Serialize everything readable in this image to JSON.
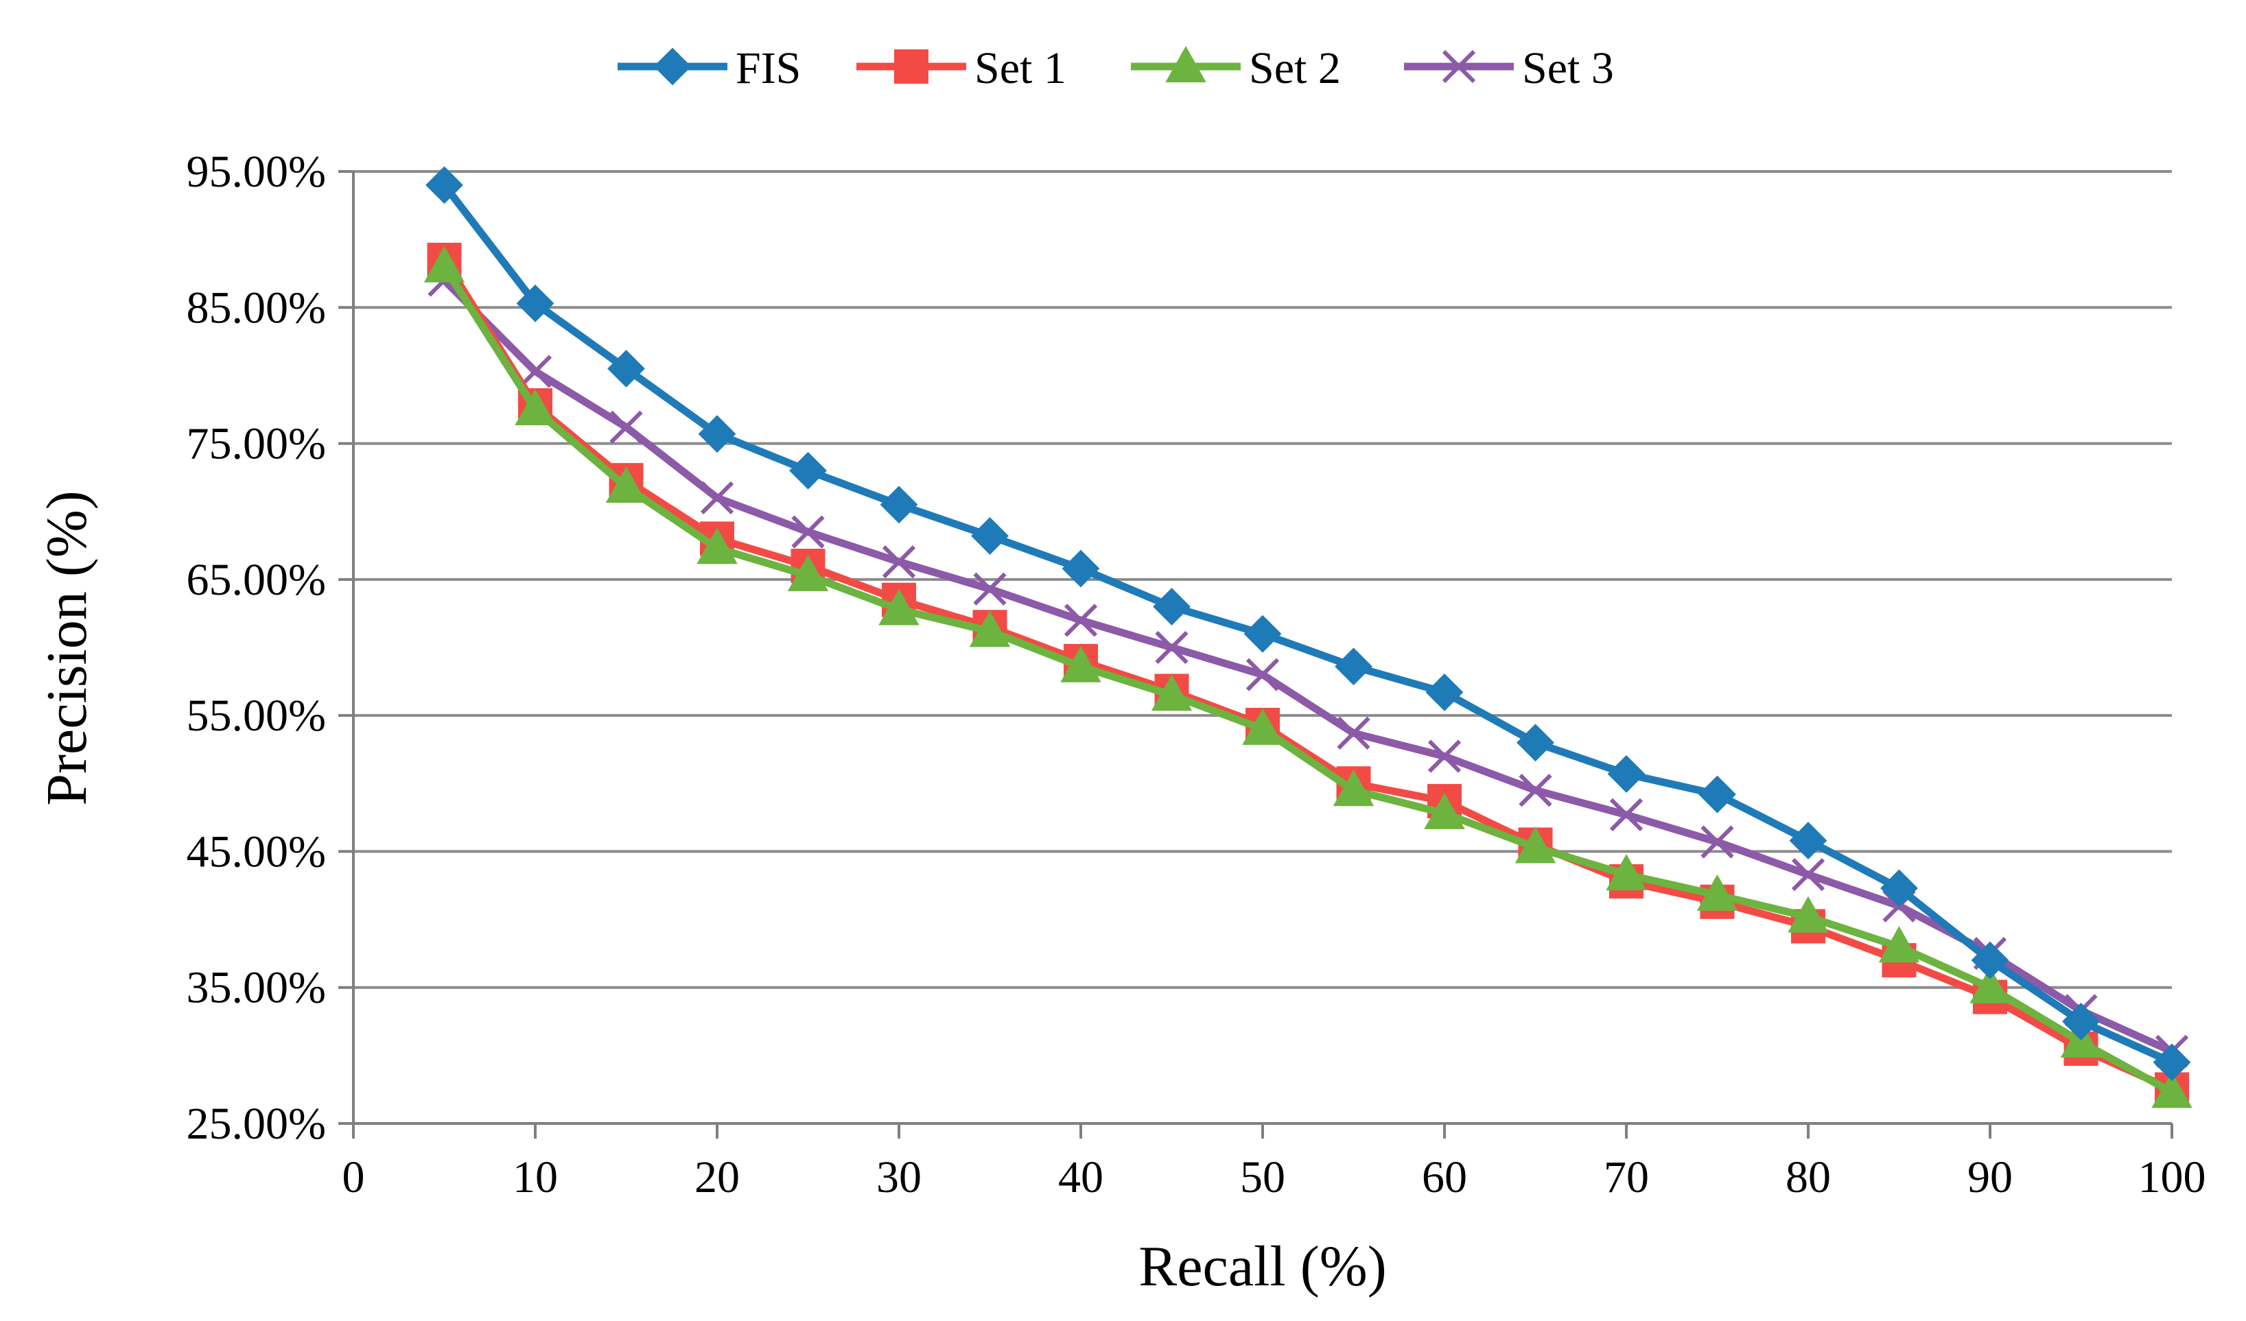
{
  "chart_data": {
    "type": "line",
    "title": "",
    "xlabel": "Recall (%)",
    "ylabel": "Precision (%)",
    "xlim": [
      0,
      100
    ],
    "ylim": [
      25,
      95
    ],
    "x_ticks": [
      0,
      10,
      20,
      30,
      40,
      50,
      60,
      70,
      80,
      90,
      100
    ],
    "x_tick_labels": [
      "0",
      "10",
      "20",
      "30",
      "40",
      "50",
      "60",
      "70",
      "80",
      "90",
      "100"
    ],
    "y_ticks": [
      25,
      35,
      45,
      55,
      65,
      75,
      85,
      95
    ],
    "y_tick_labels": [
      "25.00%",
      "35.00%",
      "45.00%",
      "55.00%",
      "65.00%",
      "75.00%",
      "85.00%",
      "95.00%"
    ],
    "grid": "horizontal",
    "legend_position": "top",
    "x": [
      5,
      10,
      15,
      20,
      25,
      30,
      35,
      40,
      45,
      50,
      55,
      60,
      65,
      70,
      75,
      80,
      85,
      90,
      95,
      100
    ],
    "series": [
      {
        "name": "FIS",
        "color": "#1f7ab8",
        "marker": "diamond",
        "values": [
          94.0,
          85.3,
          80.5,
          75.7,
          73.0,
          70.5,
          68.2,
          65.8,
          63.0,
          61.0,
          58.6,
          56.7,
          53.0,
          50.7,
          49.2,
          45.8,
          42.3,
          37.0,
          32.5,
          29.5
        ]
      },
      {
        "name": "Set 1",
        "color": "#f24b45",
        "marker": "square",
        "values": [
          88.5,
          77.8,
          72.3,
          68.0,
          66.0,
          63.5,
          61.5,
          59.0,
          56.8,
          54.3,
          50.0,
          48.7,
          45.5,
          42.8,
          41.3,
          39.5,
          37.0,
          34.3,
          30.5,
          27.5
        ]
      },
      {
        "name": "Set 2",
        "color": "#6db33f",
        "marker": "triangle",
        "values": [
          88.0,
          77.5,
          71.8,
          67.3,
          65.3,
          62.8,
          61.2,
          58.6,
          56.5,
          54.0,
          49.5,
          47.8,
          45.3,
          43.3,
          41.8,
          40.2,
          38.0,
          35.0,
          31.0,
          27.3
        ]
      },
      {
        "name": "Set 3",
        "color": "#8c5aa8",
        "marker": "x",
        "values": [
          87.0,
          80.3,
          76.2,
          71.0,
          68.5,
          66.3,
          64.3,
          62.0,
          60.0,
          58.0,
          53.7,
          52.0,
          49.5,
          47.7,
          45.7,
          43.3,
          41.0,
          37.5,
          33.3,
          30.3
        ]
      }
    ]
  }
}
